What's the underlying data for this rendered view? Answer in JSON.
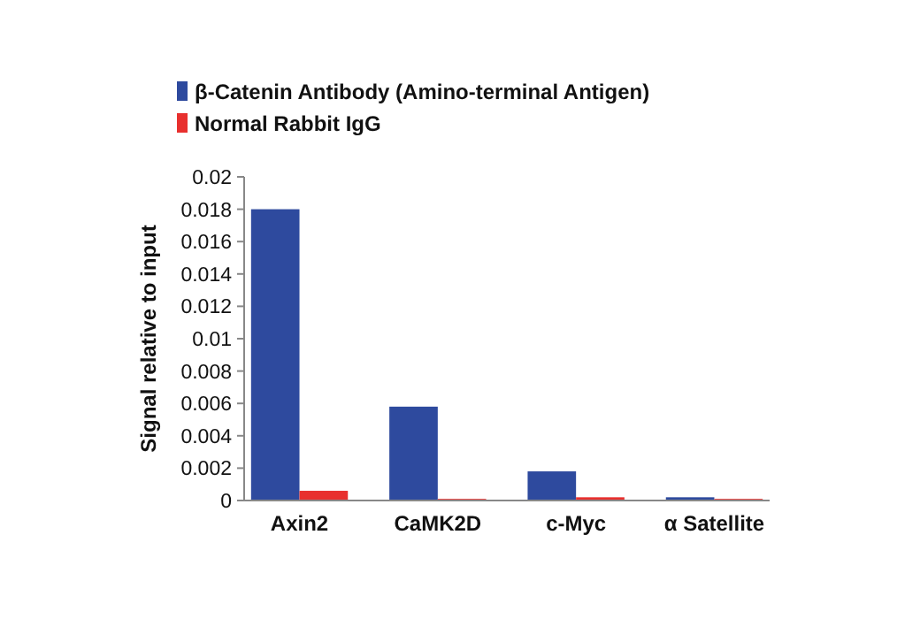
{
  "chart_data": {
    "type": "bar",
    "ylabel": "Signal relative to input",
    "categories": [
      "Axin2",
      "CaMK2D",
      "c-Myc",
      "α Satellite"
    ],
    "series": [
      {
        "name": "β-Catenin Antibody (Amino-terminal Antigen)",
        "color": "#2e4a9e",
        "values": [
          0.018,
          0.0058,
          0.0018,
          0.0002
        ]
      },
      {
        "name": "Normal Rabbit IgG",
        "color": "#e8302e",
        "values": [
          0.0006,
          0.0001,
          0.0002,
          0.0001
        ]
      }
    ],
    "ylim": [
      0,
      0.02
    ],
    "yticks": [
      0,
      0.002,
      0.004,
      0.006,
      0.008,
      0.01,
      0.012,
      0.014,
      0.016,
      0.018,
      0.02
    ],
    "grid": false,
    "legend": "top left"
  }
}
